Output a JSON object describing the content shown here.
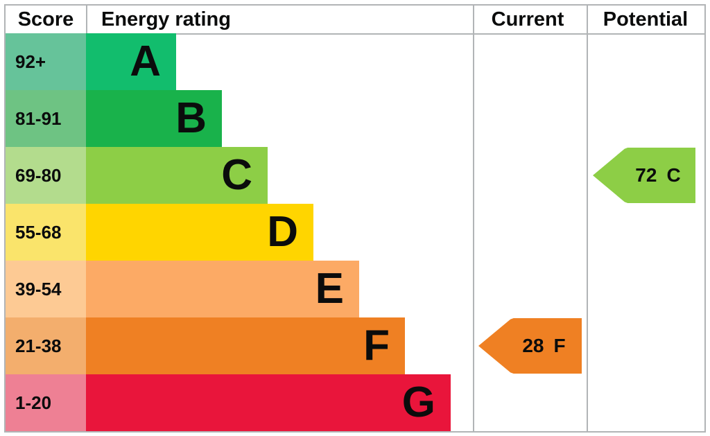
{
  "header": {
    "score": "Score",
    "rating": "Energy rating",
    "current": "Current",
    "potential": "Potential"
  },
  "bands": [
    {
      "letter": "A",
      "range": "92+",
      "bar_color": "#12bd6d",
      "score_color": "#66c39a"
    },
    {
      "letter": "B",
      "range": "81-91",
      "bar_color": "#19b24b",
      "score_color": "#6ec383"
    },
    {
      "letter": "C",
      "range": "69-80",
      "bar_color": "#8dce46",
      "score_color": "#b3dc8d"
    },
    {
      "letter": "D",
      "range": "55-68",
      "bar_color": "#ffd500",
      "score_color": "#fae46b"
    },
    {
      "letter": "E",
      "range": "39-54",
      "bar_color": "#fcaa65",
      "score_color": "#fdca94"
    },
    {
      "letter": "F",
      "range": "21-38",
      "bar_color": "#ef8023",
      "score_color": "#f3ae6d"
    },
    {
      "letter": "G",
      "range": "1-20",
      "bar_color": "#e9153b",
      "score_color": "#ee8094"
    }
  ],
  "current": {
    "value": "28",
    "band": "F",
    "color": "#ef8023"
  },
  "potential": {
    "value": "72",
    "band": "C",
    "color": "#8dce46"
  },
  "border_color": "#b1b4b6",
  "chart_data": {
    "type": "bar",
    "title": "Energy rating",
    "categories": [
      "A",
      "B",
      "C",
      "D",
      "E",
      "F",
      "G"
    ],
    "score_ranges": [
      "92+",
      "81-91",
      "69-80",
      "55-68",
      "39-54",
      "21-38",
      "1-20"
    ],
    "band_colors": [
      "#12bd6d",
      "#19b24b",
      "#8dce46",
      "#ffd500",
      "#fcaa65",
      "#ef8023",
      "#e9153b"
    ],
    "columns": [
      "Score",
      "Energy rating",
      "Current",
      "Potential"
    ],
    "current": {
      "value": 28,
      "band": "F"
    },
    "potential": {
      "value": 72,
      "band": "C"
    },
    "axis": "scores 1-100 mapped to bands G(1-20) F(21-38) E(39-54) D(55-68) C(69-80) B(81-91) A(92+)"
  }
}
